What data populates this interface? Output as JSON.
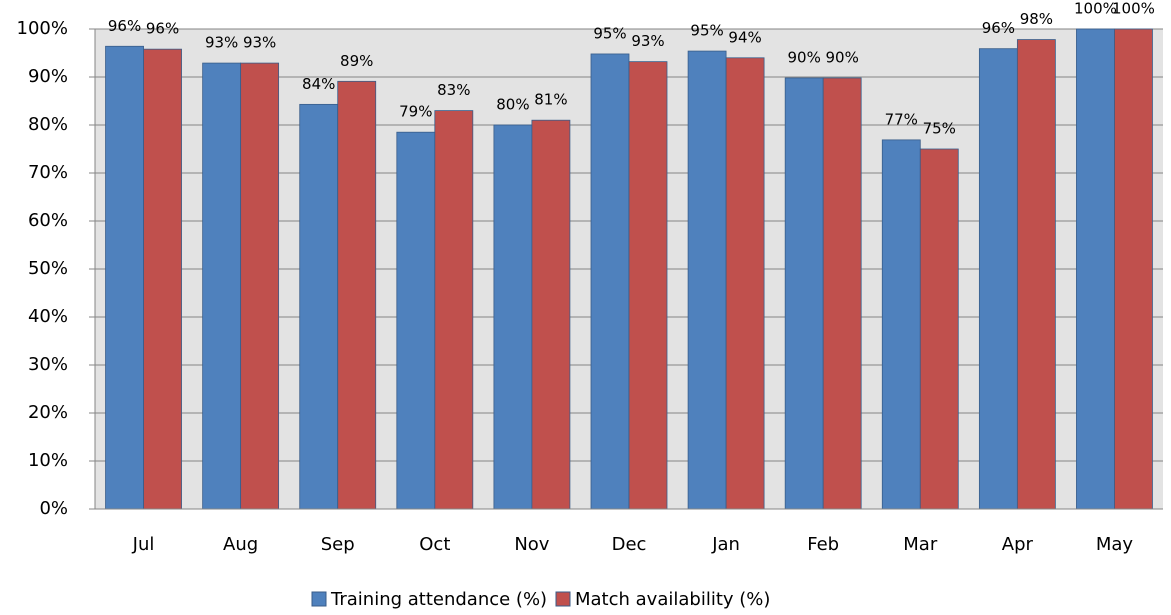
{
  "chart_data": {
    "type": "bar",
    "categories": [
      "Jul",
      "Aug",
      "Sep",
      "Oct",
      "Nov",
      "Dec",
      "Jan",
      "Feb",
      "Mar",
      "Apr",
      "May"
    ],
    "series": [
      {
        "name": "Training attendance (%)",
        "color": "#4f81bd",
        "values": [
          96.4,
          92.9,
          84.3,
          78.5,
          80,
          94.8,
          95.4,
          89.8,
          76.9,
          95.9,
          100
        ],
        "value_labels": [
          "96%",
          "93%",
          "84%",
          "79%",
          "80%",
          "95%",
          "95%",
          "90%",
          "77%",
          "96%",
          "100%"
        ]
      },
      {
        "name": "Match availability (%)",
        "color": "#c0504d",
        "values": [
          95.8,
          92.9,
          89.1,
          83,
          81,
          93.2,
          94,
          89.8,
          75,
          97.8,
          100
        ],
        "value_labels": [
          "96%",
          "93%",
          "89%",
          "83%",
          "81%",
          "93%",
          "94%",
          "90%",
          "75%",
          "98%",
          "100%"
        ]
      }
    ],
    "ylim": [
      0,
      100
    ],
    "yticks": [
      {
        "value": 0,
        "label": "0%"
      },
      {
        "value": 10,
        "label": "10%"
      },
      {
        "value": 20,
        "label": "20%"
      },
      {
        "value": 30,
        "label": "30%"
      },
      {
        "value": 40,
        "label": "40%"
      },
      {
        "value": 50,
        "label": "50%"
      },
      {
        "value": 60,
        "label": "60%"
      },
      {
        "value": 70,
        "label": "70%"
      },
      {
        "value": 80,
        "label": "80%"
      },
      {
        "value": 90,
        "label": "90%"
      },
      {
        "value": 100,
        "label": "100%"
      }
    ],
    "grid": true,
    "legend": "bottom"
  }
}
